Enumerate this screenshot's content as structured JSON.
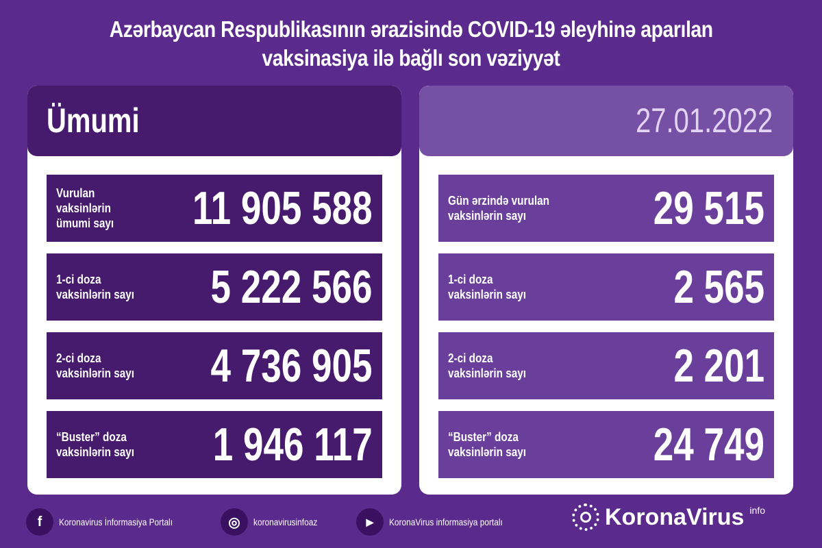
{
  "title": {
    "line1": "Azərbaycan Respublikasının ərazisində COVID-19 əleyhinə aparılan",
    "line2": "vaksinasiya ilə bağlı son vəziyyət"
  },
  "left": {
    "header": "Ümumi",
    "rows": [
      {
        "label": "Vurulan vaksinlərin\nümumi sayı",
        "value": "11 905 588"
      },
      {
        "label": "1-ci doza\nvaksinlərin sayı",
        "value": "5 222 566"
      },
      {
        "label": "2-ci doza\nvaksinlərin sayı",
        "value": "4 736 905"
      },
      {
        "label": "“Buster” doza\nvaksinlərin sayı",
        "value": "1 946 117"
      }
    ]
  },
  "right": {
    "header": "27.01.2022",
    "rows": [
      {
        "label": "Gün ərzində vurulan\nvaksinlərin sayı",
        "value": "29 515"
      },
      {
        "label": "1-ci doza\nvaksinlərin sayı",
        "value": "2 565"
      },
      {
        "label": "2-ci doza\nvaksinlərin sayı",
        "value": "2 201"
      },
      {
        "label": "“Buster” doza\nvaksinlərin sayı",
        "value": "24 749"
      }
    ]
  },
  "footer": {
    "facebook": "Koronavirus İnformasiya Portalı",
    "instagram": "koronavirusinfoaz",
    "youtube": "KoronaVirus informasiya portalı",
    "logo": "KoronaVirus",
    "logo_sup": "info"
  },
  "colors": {
    "background": "#5a2b8c",
    "dark": "#461a6c",
    "light": "#6a3f9b"
  }
}
